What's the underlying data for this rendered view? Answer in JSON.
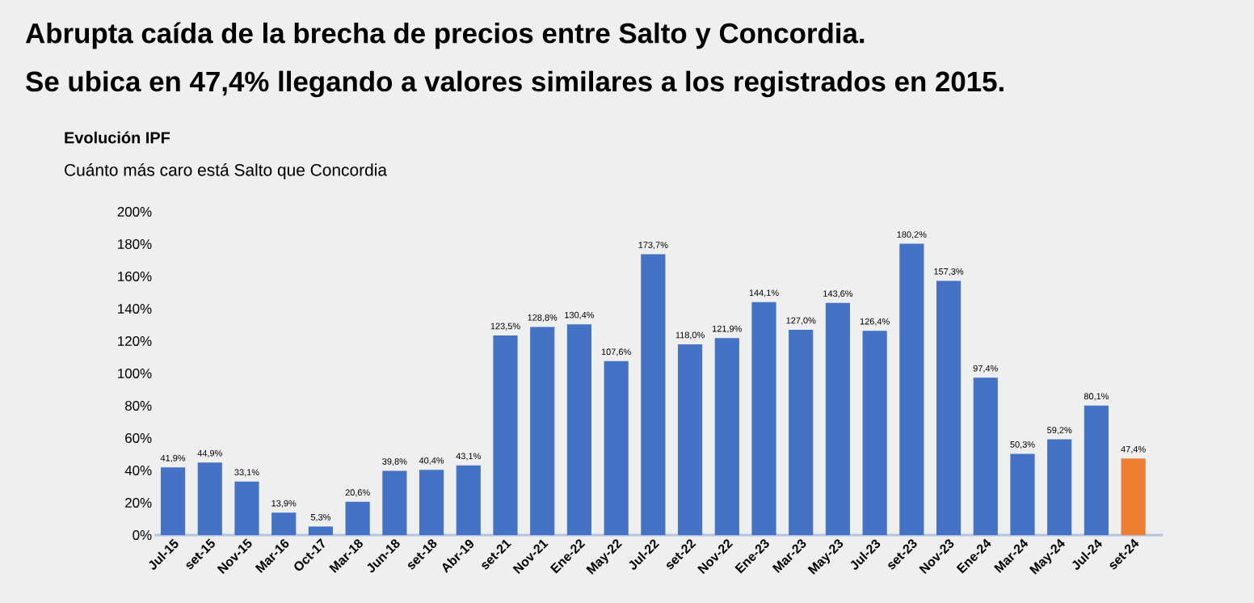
{
  "chart_data": {
    "type": "bar",
    "title": "Evolución IPF",
    "subtitle": "Cuánto más caro está Salto que Concordia",
    "annotations": [
      "Abrupta caída de la brecha de precios entre Salto y Concordia.",
      "Se ubica en 47,4% llegando a valores similares a los registrados en 2015."
    ],
    "categories": [
      "Jul-15",
      "set-15",
      "Nov-15",
      "Mar-16",
      "Oct-17",
      "Mar-18",
      "Jun-18",
      "set-18",
      "Abr-19",
      "set-21",
      "Nov-21",
      "Ene-22",
      "May-22",
      "Jul-22",
      "set-22",
      "Nov-22",
      "Ene-23",
      "Mar-23",
      "May-23",
      "Jul-23",
      "set-23",
      "Nov-23",
      "Ene-24",
      "Mar-24",
      "May-24",
      "Jul-24",
      "set-24"
    ],
    "values": [
      41.9,
      44.9,
      33.1,
      13.9,
      5.3,
      20.6,
      39.8,
      40.4,
      43.1,
      123.5,
      128.8,
      130.4,
      107.6,
      173.7,
      118.0,
      121.9,
      144.1,
      127.0,
      143.6,
      126.4,
      180.2,
      157.3,
      97.4,
      50.3,
      59.2,
      80.1,
      47.4
    ],
    "value_labels": [
      "41,9%",
      "44,9%",
      "33,1%",
      "13,9%",
      "5,3%",
      "20,6%",
      "39,8%",
      "40,4%",
      "43,1%",
      "123,5%",
      "128,8%",
      "130,4%",
      "107,6%",
      "173,7%",
      "118,0%",
      "121,9%",
      "144,1%",
      "127,0%",
      "143,6%",
      "126,4%",
      "180,2%",
      "157,3%",
      "97,4%",
      "50,3%",
      "59,2%",
      "80,1%",
      "47,4%"
    ],
    "colors": [
      "#4472c4",
      "#4472c4",
      "#4472c4",
      "#4472c4",
      "#4472c4",
      "#4472c4",
      "#4472c4",
      "#4472c4",
      "#4472c4",
      "#4472c4",
      "#4472c4",
      "#4472c4",
      "#4472c4",
      "#4472c4",
      "#4472c4",
      "#4472c4",
      "#4472c4",
      "#4472c4",
      "#4472c4",
      "#4472c4",
      "#4472c4",
      "#4472c4",
      "#4472c4",
      "#4472c4",
      "#4472c4",
      "#4472c4",
      "#ed7d31"
    ],
    "ylim": [
      0,
      200
    ],
    "yticks": [
      {
        "value": 0,
        "label": "0%"
      },
      {
        "value": 20,
        "label": "20%"
      },
      {
        "value": 40,
        "label": "40%"
      },
      {
        "value": 60,
        "label": "60%"
      },
      {
        "value": 80,
        "label": "80%"
      },
      {
        "value": 100,
        "label": "100%"
      },
      {
        "value": 120,
        "label": "120%"
      },
      {
        "value": 140,
        "label": "140%"
      },
      {
        "value": 160,
        "label": "160%"
      },
      {
        "value": 180,
        "label": "180%"
      },
      {
        "value": 200,
        "label": "200%"
      }
    ]
  }
}
